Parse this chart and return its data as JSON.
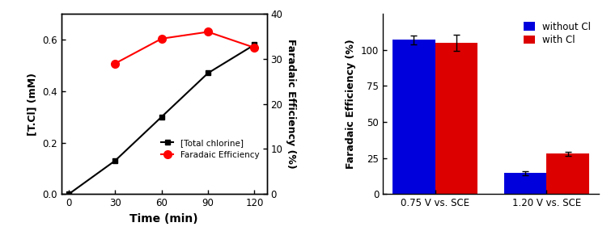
{
  "left": {
    "time": [
      0,
      30,
      60,
      90,
      120
    ],
    "tcl": [
      0.0,
      0.13,
      0.3,
      0.47,
      0.58
    ],
    "fe_plotted": [
      29.0,
      34.5,
      36.0,
      32.5
    ],
    "fe_time": [
      30,
      60,
      90,
      120
    ],
    "ylabel_left": "[T.Cl] (mM)",
    "ylabel_right": "Faradaic Efficiency (%)",
    "xlabel": "Time (min)",
    "legend_tcl": "[Total chlorine]",
    "legend_fe": "Faradaic Efficiency",
    "ylim_left": [
      0,
      0.7
    ],
    "ylim_right": [
      0,
      40
    ],
    "yticks_left": [
      0.0,
      0.2,
      0.4,
      0.6
    ],
    "yticks_right": [
      0,
      10,
      20,
      30,
      40
    ],
    "xticks": [
      0,
      30,
      60,
      90,
      120
    ]
  },
  "right": {
    "categories": [
      "0.75 V vs. SCE",
      "1.20 V vs. SCE"
    ],
    "without_cl": [
      107.0,
      14.5
    ],
    "with_cl": [
      105.0,
      28.0
    ],
    "without_cl_err": [
      3.0,
      1.5
    ],
    "with_cl_err": [
      5.5,
      1.5
    ],
    "ylabel": "Faradaic Efficiency (%)",
    "yticks": [
      0,
      25,
      50,
      75,
      100
    ],
    "ylim": [
      0,
      125
    ],
    "color_without": "#0000dd",
    "color_with": "#dd0000",
    "legend_without": "without Cl",
    "legend_with": "with Cl"
  },
  "bg_color": "#ffffff"
}
